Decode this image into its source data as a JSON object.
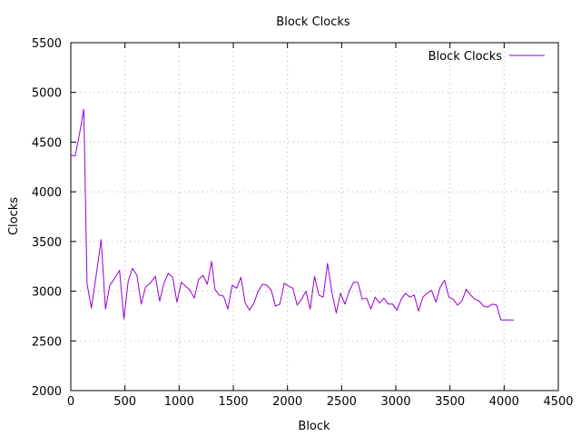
{
  "chart_data": {
    "type": "line",
    "title": "Block Clocks",
    "xlabel": "Block",
    "ylabel": "Clocks",
    "xlim": [
      0,
      4500
    ],
    "ylim": [
      2000,
      5500
    ],
    "xticks": [
      0,
      500,
      1000,
      1500,
      2000,
      2500,
      3000,
      3500,
      4000,
      4500
    ],
    "yticks": [
      2000,
      2500,
      3000,
      3500,
      4000,
      4500,
      5000,
      5500
    ],
    "grid": true,
    "legend_position": "top-right",
    "series": [
      {
        "name": "Block Clocks",
        "color": "#9400d3",
        "x": [
          0,
          40,
          80,
          120,
          150,
          190,
          240,
          280,
          320,
          360,
          400,
          450,
          490,
          530,
          570,
          610,
          650,
          690,
          740,
          780,
          820,
          860,
          900,
          940,
          980,
          1020,
          1060,
          1100,
          1140,
          1180,
          1220,
          1260,
          1300,
          1330,
          1370,
          1410,
          1450,
          1490,
          1530,
          1570,
          1610,
          1650,
          1690,
          1730,
          1770,
          1810,
          1850,
          1890,
          1930,
          1970,
          2010,
          2050,
          2090,
          2130,
          2170,
          2210,
          2250,
          2290,
          2330,
          2370,
          2410,
          2450,
          2490,
          2530,
          2570,
          2610,
          2650,
          2690,
          2730,
          2770,
          2810,
          2850,
          2890,
          2930,
          2970,
          3010,
          3050,
          3090,
          3130,
          3170,
          3210,
          3250,
          3290,
          3330,
          3370,
          3410,
          3450,
          3490,
          3530,
          3570,
          3610,
          3650,
          3690,
          3730,
          3770,
          3810,
          3850,
          3890,
          3930,
          3970,
          4010,
          4050,
          4090
        ],
        "y": [
          4370,
          4360,
          4580,
          4830,
          3070,
          2830,
          3200,
          3520,
          2820,
          3060,
          3120,
          3210,
          2720,
          3100,
          3230,
          3160,
          2870,
          3040,
          3090,
          3150,
          2900,
          3080,
          3180,
          3140,
          2890,
          3090,
          3050,
          3010,
          2930,
          3120,
          3160,
          3070,
          3300,
          3020,
          2960,
          2950,
          2820,
          3060,
          3030,
          3140,
          2880,
          2810,
          2880,
          3000,
          3070,
          3060,
          3010,
          2850,
          2870,
          3080,
          3050,
          3030,
          2860,
          2920,
          3000,
          2820,
          3150,
          2960,
          2940,
          3280,
          2990,
          2780,
          2980,
          2870,
          3000,
          3090,
          3090,
          2920,
          2930,
          2820,
          2940,
          2880,
          2930,
          2870,
          2870,
          2810,
          2920,
          2980,
          2940,
          2960,
          2800,
          2940,
          2980,
          3010,
          2890,
          3040,
          3110,
          2940,
          2920,
          2860,
          2900,
          3020,
          2960,
          2920,
          2900,
          2850,
          2840,
          2870,
          2860,
          2710,
          2710,
          2710,
          2710
        ]
      }
    ]
  }
}
